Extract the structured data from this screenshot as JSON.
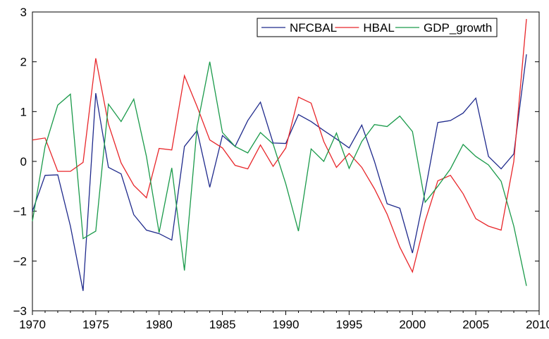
{
  "chart_data": {
    "type": "line",
    "x": [
      1970,
      1971,
      1972,
      1973,
      1974,
      1975,
      1976,
      1977,
      1978,
      1979,
      1980,
      1981,
      1982,
      1983,
      1984,
      1985,
      1986,
      1987,
      1988,
      1989,
      1990,
      1991,
      1992,
      1993,
      1994,
      1995,
      1996,
      1997,
      1998,
      1999,
      2000,
      2001,
      2002,
      2003,
      2004,
      2005,
      2006,
      2007,
      2008,
      2009
    ],
    "series": [
      {
        "name": "NFCBAL",
        "color": "#1f2a8c",
        "values": [
          -1.0,
          -0.28,
          -0.27,
          -1.3,
          -2.6,
          1.37,
          -0.12,
          -0.25,
          -1.07,
          -1.38,
          -1.45,
          -1.58,
          0.3,
          0.62,
          -0.52,
          0.52,
          0.3,
          0.82,
          1.19,
          0.37,
          0.36,
          0.94,
          0.8,
          0.62,
          0.45,
          0.27,
          0.73,
          0.0,
          -0.85,
          -0.94,
          -1.84,
          -0.6,
          0.78,
          0.82,
          0.97,
          1.27,
          0.1,
          -0.15,
          0.15,
          2.15
        ]
      },
      {
        "name": "HBAL",
        "color": "#e8262a",
        "values": [
          0.43,
          0.47,
          -0.2,
          -0.2,
          -0.02,
          2.07,
          0.75,
          -0.03,
          -0.48,
          -0.73,
          0.26,
          0.23,
          1.72,
          1.1,
          0.43,
          0.27,
          -0.08,
          -0.15,
          0.33,
          -0.1,
          0.27,
          1.29,
          1.17,
          0.4,
          -0.12,
          0.16,
          -0.12,
          -0.55,
          -1.06,
          -1.72,
          -2.22,
          -1.2,
          -0.39,
          -0.28,
          -0.65,
          -1.15,
          -1.3,
          -1.38,
          0.0,
          2.86
        ]
      },
      {
        "name": "GDP_growth",
        "color": "#1a9a4a",
        "values": [
          -1.2,
          0.3,
          1.13,
          1.35,
          -1.55,
          -1.4,
          1.15,
          0.8,
          1.25,
          0.1,
          -1.43,
          -0.13,
          -2.19,
          0.7,
          2.0,
          0.58,
          0.3,
          0.17,
          0.58,
          0.35,
          -0.45,
          -1.4,
          0.25,
          0.0,
          0.57,
          -0.14,
          0.4,
          0.74,
          0.7,
          0.91,
          0.6,
          -0.82,
          -0.5,
          -0.15,
          0.34,
          0.1,
          -0.07,
          -0.4,
          -1.3,
          -2.5
        ]
      }
    ],
    "xlim": [
      1970,
      2010
    ],
    "xticks": [
      1970,
      1975,
      1980,
      1985,
      1990,
      1995,
      2000,
      2005,
      2010
    ],
    "ylim": [
      -3,
      3
    ],
    "yticks": [
      {
        "value": -3,
        "label": "−3"
      },
      {
        "value": -2,
        "label": "−2"
      },
      {
        "value": -1,
        "label": "−1"
      },
      0,
      1,
      2,
      3
    ],
    "legend": "upper right",
    "grid": false
  }
}
